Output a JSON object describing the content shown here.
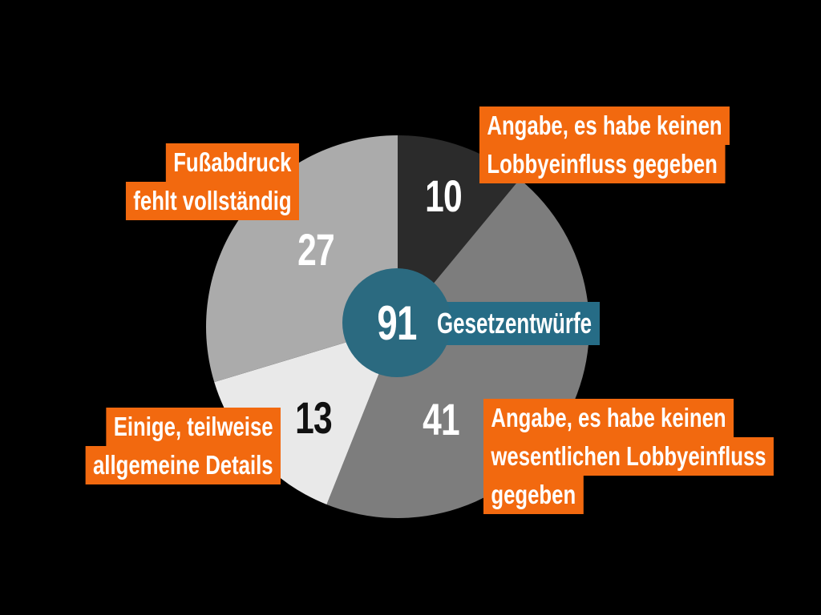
{
  "colors": {
    "background": "#000000",
    "accent_orange": "#f2690f",
    "teal_circle": "#2b6a80",
    "teal_bar": "#266c86",
    "label_text": "#ffffff"
  },
  "chart_data": {
    "type": "pie",
    "title": "",
    "total": 91,
    "start_angle_deg": 0,
    "direction": "clockwise",
    "legend_position": "callouts",
    "segments": [
      {
        "value": 10,
        "color": "#2b2b2b",
        "value_label_color": "#ffffff",
        "annotation": "Angabe, es habe keinen Lobbyeinfluss gegeben"
      },
      {
        "value": 41,
        "color": "#7d7d7d",
        "value_label_color": "#ffffff",
        "annotation": "Angabe, es habe keinen wesentlichen Lobbyeinfluss gegeben"
      },
      {
        "value": 13,
        "color": "#e9e9e9",
        "value_label_color": "#111111",
        "annotation": "Einige, teilweise allgemeine Details"
      },
      {
        "value": 27,
        "color": "#ababab",
        "value_label_color": "#ffffff",
        "annotation": "Fußabdruck fehlt vollständig"
      }
    ]
  },
  "center": {
    "value": "91",
    "label": "Gesetzentwürfe"
  },
  "annotations": {
    "top_left": {
      "lines": [
        "Fußabdruck",
        "fehlt vollständig"
      ]
    },
    "top_right": {
      "lines": [
        "Angabe, es habe keinen",
        "Lobbyeinfluss gegeben"
      ]
    },
    "bottom_left": {
      "lines": [
        "Einige, teilweise",
        "allgemeine Details"
      ]
    },
    "bottom_right": {
      "lines": [
        "Angabe, es habe keinen",
        "wesentlichen Lobbyeinfluss",
        "gegeben"
      ]
    }
  }
}
